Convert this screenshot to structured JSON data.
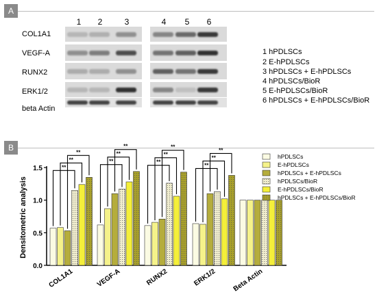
{
  "panel_a": {
    "badge": "A",
    "lane_numbers": [
      "1",
      "2",
      "3",
      "4",
      "5",
      "6"
    ],
    "rows": [
      "COL1A1",
      "VEGF-A",
      "RUNX2",
      "ERK1/2",
      "beta Actin"
    ],
    "legend": [
      "1 hPDLSCs",
      "2 E-hPDLSCs",
      "3 hPDLSCs + E-hPDLSCs",
      "4 hPDLSCs/BioR",
      "5 E-hPDLSCs/BioR",
      "6 hPDLSCs + E-hPDLSCs/BioR"
    ],
    "band_intensity": [
      [
        0.15,
        0.18,
        0.35,
        0.4,
        0.55,
        0.8
      ],
      [
        0.35,
        0.45,
        0.7,
        0.5,
        0.6,
        0.85
      ],
      [
        0.2,
        0.2,
        0.35,
        0.6,
        0.5,
        0.8
      ],
      [
        0.15,
        0.15,
        0.85,
        0.4,
        0.1,
        0.8
      ],
      [
        0.75,
        0.75,
        0.75,
        0.75,
        0.75,
        0.75
      ]
    ]
  },
  "panel_b": {
    "badge": "B"
  },
  "chart_data": {
    "type": "bar",
    "ylabel": "Densitometric analysis",
    "ylim": [
      0,
      1.5
    ],
    "yticks": [
      "0.0",
      "0.5",
      "1.0",
      "1.5"
    ],
    "categories": [
      "COL1A1",
      "VEGF-A",
      "RUNX2",
      "ERK1/2",
      "Beta Actin"
    ],
    "series": [
      {
        "name": "hPDLSCs",
        "color": "#fbfbe3",
        "pattern": "none",
        "values": [
          0.57,
          0.62,
          0.61,
          0.64,
          1.0
        ]
      },
      {
        "name": "E-hPDLSCs",
        "color": "#f5f28a",
        "pattern": "none",
        "values": [
          0.58,
          0.87,
          0.66,
          0.63,
          1.0
        ]
      },
      {
        "name": "hPDLSCs + E-hPDLSCs",
        "color": "#b5ad3c",
        "pattern": "none",
        "values": [
          0.53,
          1.1,
          0.71,
          1.1,
          1.0
        ]
      },
      {
        "name": "hPDLSCs/BioR",
        "color": "#f1eecf",
        "pattern": "dots",
        "values": [
          1.15,
          1.17,
          1.26,
          1.13,
          1.0
        ]
      },
      {
        "name": "E-hPDLSCs/BioR",
        "color": "#f4ef3a",
        "pattern": "none",
        "values": [
          1.24,
          1.28,
          1.06,
          1.02,
          1.0
        ]
      },
      {
        "name": "hPDLSCs + E-hPDLSCs/BioR",
        "color": "#a8a02a",
        "pattern": "dots",
        "values": [
          1.35,
          1.44,
          1.43,
          1.38,
          1.0
        ]
      }
    ],
    "significance_label": "**",
    "significance_brackets_per_group": [
      [
        0,
        3
      ],
      [
        1,
        4
      ],
      [
        2,
        5
      ]
    ],
    "significance_groups": [
      0,
      1,
      2,
      3
    ]
  }
}
